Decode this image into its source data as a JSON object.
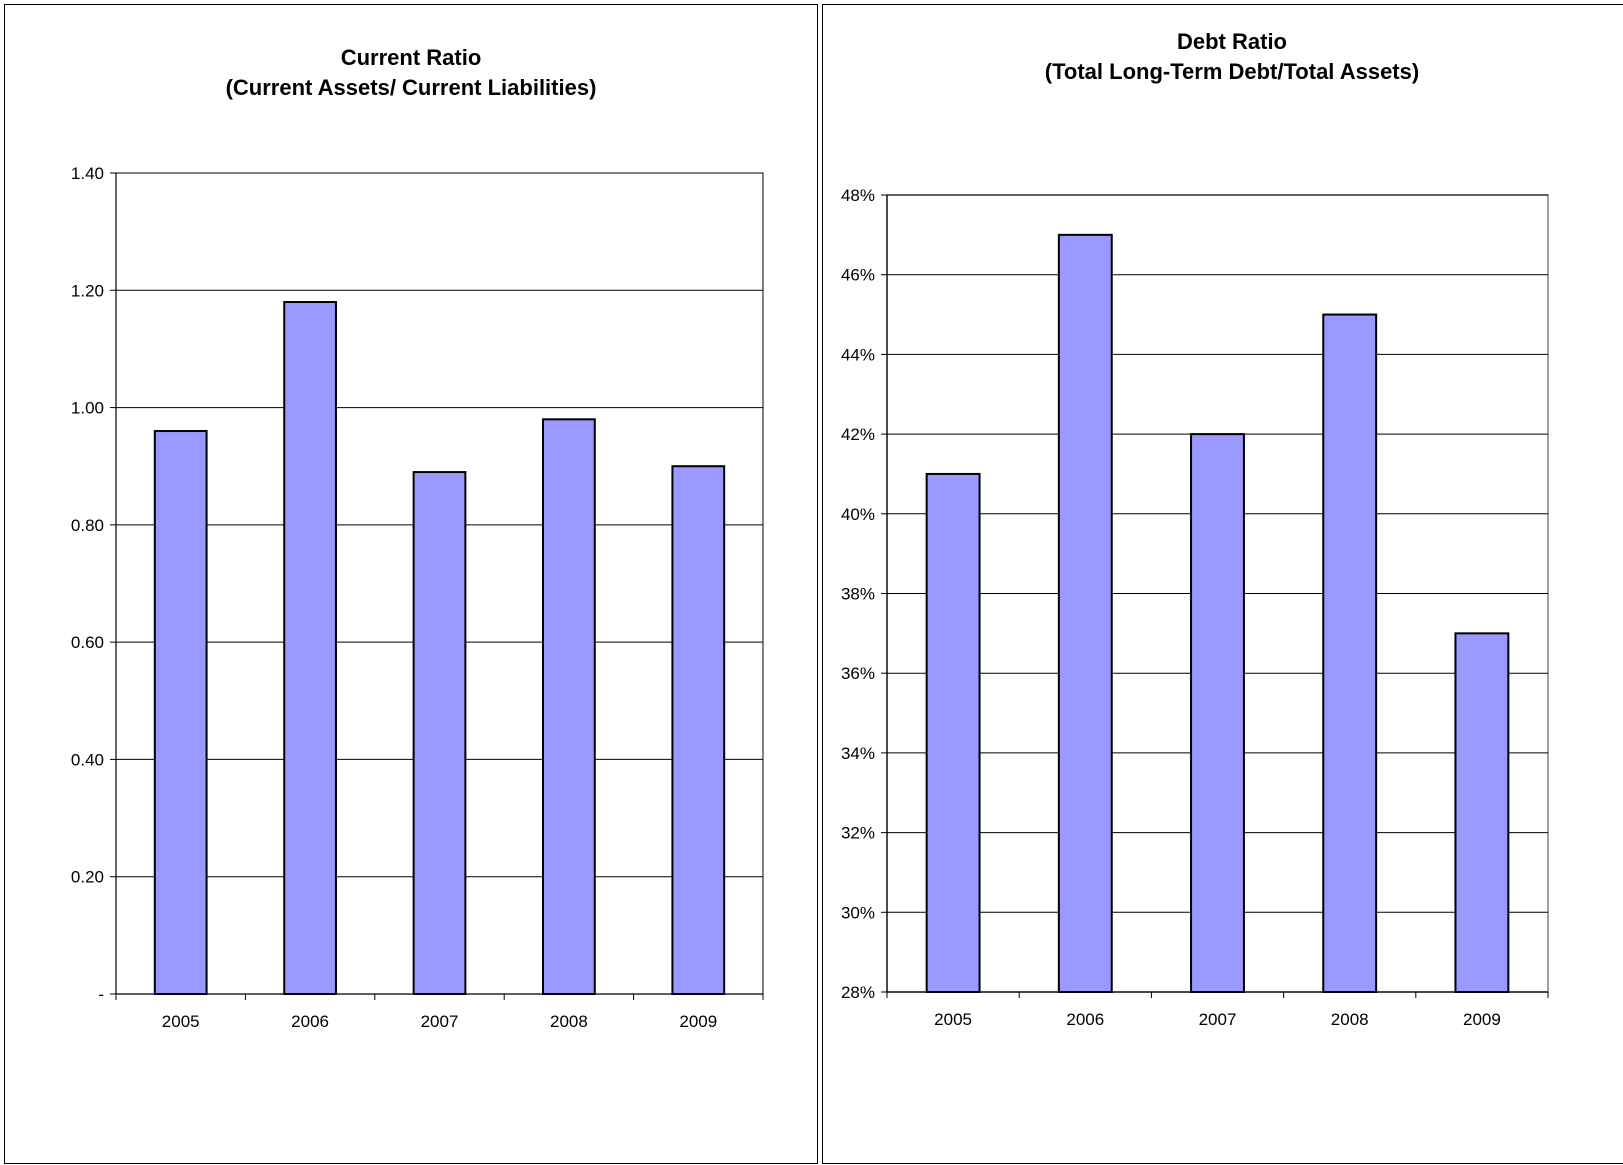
{
  "chart_data": [
    {
      "type": "bar",
      "title": "Current Ratio",
      "subtitle": "(Current Assets/ Current Liabilities)",
      "categories": [
        "2005",
        "2006",
        "2007",
        "2008",
        "2009"
      ],
      "values": [
        0.96,
        1.18,
        0.89,
        0.98,
        0.9
      ],
      "ylim": [
        0,
        1.4
      ],
      "yticks": [
        0,
        0.2,
        0.4,
        0.6,
        0.8,
        1.0,
        1.2,
        1.4
      ],
      "ytick_labels": [
        "-",
        "0.20",
        "0.40",
        "0.60",
        "0.80",
        "1.00",
        "1.20",
        "1.40"
      ],
      "xlabel": "",
      "ylabel": "",
      "grid": true,
      "legend": "none",
      "bar_color": "#9999ff"
    },
    {
      "type": "bar",
      "title": "Debt Ratio",
      "subtitle": "(Total Long-Term Debt/Total Assets)",
      "categories": [
        "2005",
        "2006",
        "2007",
        "2008",
        "2009"
      ],
      "values": [
        41,
        47,
        42,
        45,
        37
      ],
      "ylim": [
        28,
        48
      ],
      "yticks": [
        28,
        30,
        32,
        34,
        36,
        38,
        40,
        42,
        44,
        46,
        48
      ],
      "ytick_labels": [
        "28%",
        "30%",
        "32%",
        "34%",
        "36%",
        "38%",
        "40%",
        "42%",
        "44%",
        "46%",
        "48%"
      ],
      "xlabel": "",
      "ylabel": "",
      "grid": true,
      "legend": "none",
      "bar_color": "#9999ff"
    }
  ]
}
